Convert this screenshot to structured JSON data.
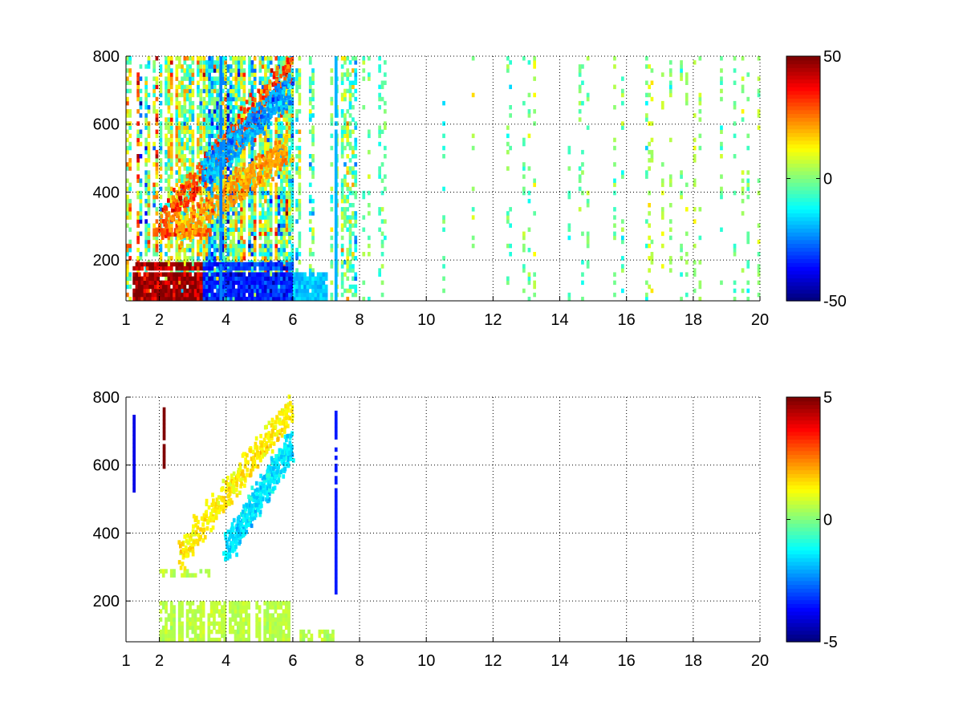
{
  "chart_data": [
    {
      "type": "heatmap",
      "title": "",
      "xlabel": "",
      "ylabel": "",
      "xlim": [
        1,
        20
      ],
      "ylim": [
        80,
        800
      ],
      "xticks": [
        1,
        2,
        4,
        6,
        8,
        10,
        12,
        14,
        16,
        18,
        20
      ],
      "yticks": [
        200,
        400,
        600,
        800
      ],
      "grid": true,
      "colormap": "jet",
      "clim": [
        -50,
        50
      ],
      "colorbar_ticks": [
        50,
        0,
        -50
      ],
      "missing_values": "white",
      "regions": [
        {
          "x": [
            1.0,
            2.0
          ],
          "y": [
            80,
            800
          ],
          "density": 0.6,
          "mean": 6,
          "spread": 22
        },
        {
          "x": [
            2.0,
            3.3
          ],
          "y": [
            80,
            800
          ],
          "density": 0.8,
          "mean": 8,
          "spread": 20
        },
        {
          "x": [
            3.3,
            6.0
          ],
          "y": [
            80,
            800
          ],
          "density": 0.85,
          "mean": -4,
          "spread": 22
        },
        {
          "x": [
            6.0,
            8.0
          ],
          "y": [
            80,
            800
          ],
          "density": 0.5,
          "mean": -2,
          "spread": 14
        },
        {
          "x": [
            8.0,
            20.0
          ],
          "y": [
            80,
            800
          ],
          "density": 0.25,
          "mean": 0,
          "spread": 8
        }
      ],
      "bands": [
        {
          "y": [
            80,
            160
          ],
          "x": [
            1.2,
            3.3
          ],
          "value": 48
        },
        {
          "y": [
            80,
            160
          ],
          "x": [
            3.3,
            6.0
          ],
          "value": -35
        },
        {
          "y": [
            170,
            190
          ],
          "x": [
            1.2,
            3.3
          ],
          "value": 45
        },
        {
          "y": [
            170,
            190
          ],
          "x": [
            3.3,
            6.0
          ],
          "value": -32
        },
        {
          "y": [
            270,
            290
          ],
          "x": [
            1.8,
            3.5
          ],
          "value": 30
        },
        {
          "y": [
            80,
            160
          ],
          "x": [
            6.0,
            7.0
          ],
          "value": -18
        }
      ],
      "ridges": [
        {
          "x": [
            2.0,
            5.9
          ],
          "y": [
            300,
            760
          ],
          "value": 30
        },
        {
          "x": [
            3.3,
            5.9
          ],
          "y": [
            450,
            700
          ],
          "value": -22
        },
        {
          "x": [
            2.5,
            5.8
          ],
          "y": [
            270,
            520
          ],
          "value": 22
        }
      ],
      "columns": [
        {
          "x": 7.25,
          "y": [
            80,
            800
          ],
          "value": -20
        },
        {
          "x": 3.8,
          "y": [
            80,
            800
          ],
          "value": -25
        }
      ]
    },
    {
      "type": "heatmap",
      "title": "",
      "xlabel": "",
      "ylabel": "",
      "xlim": [
        1,
        20
      ],
      "ylim": [
        80,
        800
      ],
      "xticks": [
        1,
        2,
        4,
        6,
        8,
        10,
        12,
        14,
        16,
        18,
        20
      ],
      "yticks": [
        200,
        400,
        600,
        800
      ],
      "grid": true,
      "colormap": "jet",
      "clim": [
        -5,
        5
      ],
      "colorbar_ticks": [
        5,
        0,
        -5
      ],
      "missing_values": "white",
      "regions": [
        {
          "x": [
            2.0,
            5.9
          ],
          "y": [
            80,
            195
          ],
          "density": 0.85,
          "mean": 0.6,
          "spread": 0.2
        },
        {
          "x": [
            2.0,
            3.5
          ],
          "y": [
            270,
            290
          ],
          "density": 0.7,
          "mean": 0.6,
          "spread": 0.3
        },
        {
          "x": [
            6.2,
            7.2
          ],
          "y": [
            80,
            105
          ],
          "density": 0.8,
          "mean": 0.6,
          "spread": 0.2
        }
      ],
      "bands": [],
      "ridges": [
        {
          "x": [
            2.6,
            5.9
          ],
          "y": [
            330,
            760
          ],
          "value": 1.4
        },
        {
          "x": [
            4.0,
            5.9
          ],
          "y": [
            350,
            650
          ],
          "value": -1.5
        }
      ],
      "columns": [
        {
          "x": 7.25,
          "y": [
            220,
            760
          ],
          "value": -3.5
        },
        {
          "x": 2.1,
          "y": [
            590,
            770
          ],
          "value": 5
        },
        {
          "x": 1.2,
          "y": [
            520,
            740
          ],
          "value": -4
        }
      ]
    }
  ]
}
